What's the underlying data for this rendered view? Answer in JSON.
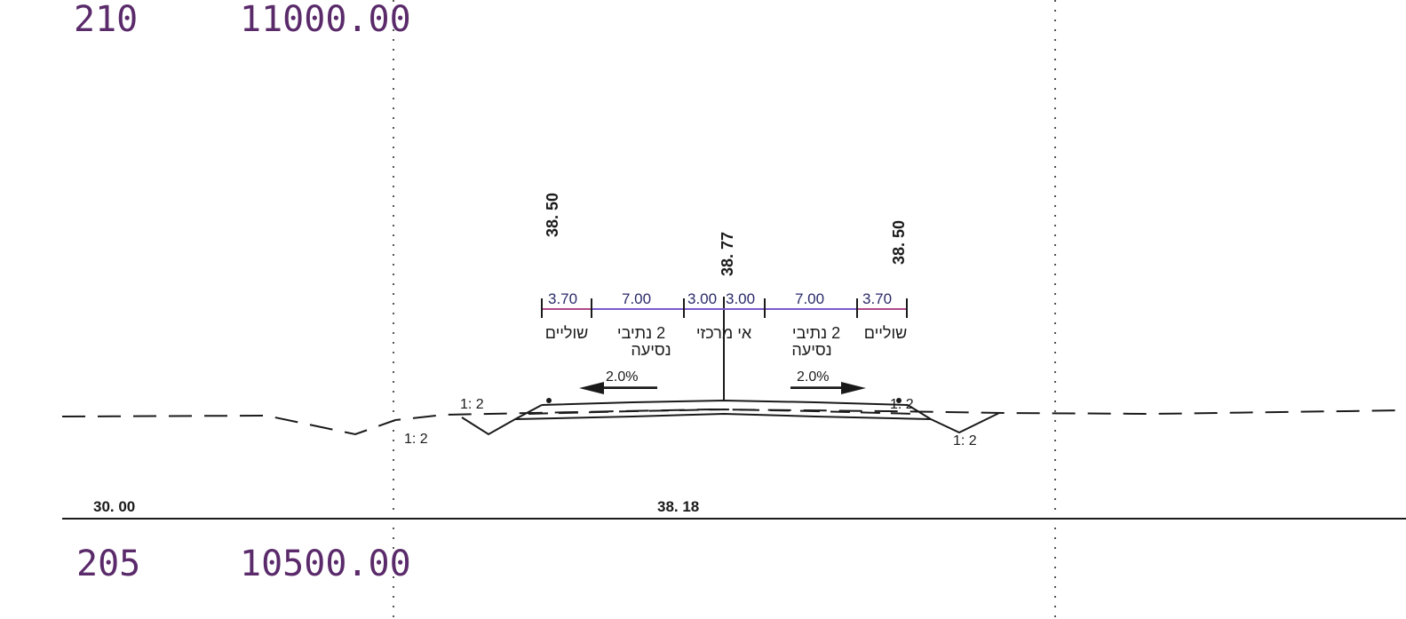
{
  "colors": {
    "background": "#ffffff",
    "line": "#1a1a1a",
    "dimension_text": "#2a2a6a",
    "station_text": "#5a2a6a",
    "center_line": "#7a5acc",
    "shoulder_line": "#b04a8a"
  },
  "top_station": {
    "number": "210",
    "chainage": "11000.00"
  },
  "bottom_station": {
    "number": "205",
    "chainage": "10500.00"
  },
  "baseline_labels": {
    "left": "30. 00",
    "center": "38. 18"
  },
  "elevations": {
    "left_edge": "38. 50",
    "center": "38. 77",
    "right_edge": "38. 50"
  },
  "widths": {
    "left_shoulder": "3.70",
    "left_lanes": "7.00",
    "median_left": "3.00",
    "median_right": "3.00",
    "right_lanes": "7.00",
    "right_shoulder": "3.70"
  },
  "labels": {
    "left_shoulder": "שוליים",
    "left_lanes_line1": "2 נתיבי",
    "left_lanes_line2": "נסיעה",
    "median": "אי מרכזי",
    "right_lanes_line1": "2 נתיבי",
    "right_lanes_line2": "נסיעה",
    "right_shoulder": "שוליים"
  },
  "slopes": {
    "left_cross_slope": "2.0%",
    "right_cross_slope": "2.0%",
    "left_fill": "1: 2",
    "left_ditch": "1: 2",
    "right_fill": "1: 2",
    "right_ditch": "1: 2"
  }
}
